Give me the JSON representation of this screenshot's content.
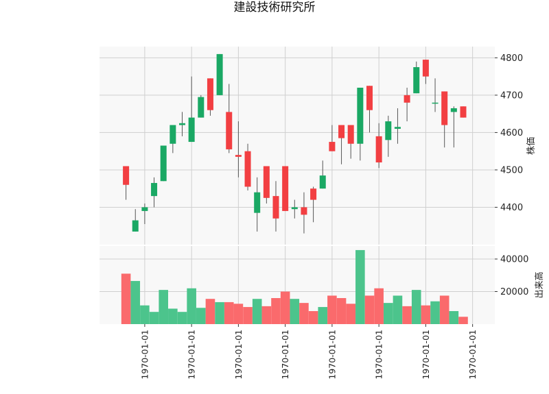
{
  "chart_data": {
    "type": "candlestick",
    "title": "建設技術研究所",
    "price_axis": {
      "label": "株価",
      "ylim": [
        4300,
        4830
      ],
      "ticks": [
        4400,
        4500,
        4600,
        4700,
        4800
      ]
    },
    "volume_axis": {
      "label": "出来高",
      "ylim": [
        0,
        48000
      ],
      "ticks": [
        20000,
        40000
      ]
    },
    "x_tick_labels": [
      "1970-01-01",
      "1970-01-01",
      "1970-01-01",
      "1970-01-01",
      "1970-01-01",
      "1970-01-01",
      "1970-01-01",
      "1970-01-01"
    ],
    "x_tick_positions": [
      2,
      7,
      12,
      17,
      22,
      27,
      32,
      37
    ],
    "colors": {
      "up": "#1aa864",
      "down": "#f23f42",
      "up_volume": "#4cc48c",
      "down_volume": "#fa6a6c",
      "wick": "#555555",
      "panel_bg": "#f8f8f8",
      "grid": "#cfcfcf"
    },
    "candles": [
      {
        "open": 4510,
        "high": 4510,
        "low": 4420,
        "close": 4460,
        "volume": 31000
      },
      {
        "open": 4335,
        "high": 4395,
        "low": 4335,
        "close": 4365,
        "volume": 26500
      },
      {
        "open": 4390,
        "high": 4410,
        "low": 4355,
        "close": 4400,
        "volume": 11500
      },
      {
        "open": 4430,
        "high": 4480,
        "low": 4400,
        "close": 4465,
        "volume": 7500
      },
      {
        "open": 4470,
        "high": 4565,
        "low": 4470,
        "close": 4565,
        "volume": 21000
      },
      {
        "open": 4570,
        "high": 4620,
        "low": 4545,
        "close": 4620,
        "volume": 9500
      },
      {
        "open": 4620,
        "high": 4655,
        "low": 4590,
        "close": 4625,
        "volume": 7500
      },
      {
        "open": 4575,
        "high": 4750,
        "low": 4575,
        "close": 4640,
        "volume": 22000
      },
      {
        "open": 4640,
        "high": 4700,
        "low": 4640,
        "close": 4695,
        "volume": 10000
      },
      {
        "open": 4745,
        "high": 4745,
        "low": 4645,
        "close": 4660,
        "volume": 15500
      },
      {
        "open": 4700,
        "high": 4810,
        "low": 4700,
        "close": 4810,
        "volume": 13500
      },
      {
        "open": 4655,
        "high": 4730,
        "low": 4545,
        "close": 4555,
        "volume": 13500
      },
      {
        "open": 4540,
        "high": 4630,
        "low": 4480,
        "close": 4535,
        "volume": 12500
      },
      {
        "open": 4550,
        "high": 4570,
        "low": 4445,
        "close": 4455,
        "volume": 10500
      },
      {
        "open": 4385,
        "high": 4480,
        "low": 4335,
        "close": 4440,
        "volume": 15500
      },
      {
        "open": 4510,
        "high": 4510,
        "low": 4410,
        "close": 4425,
        "volume": 11000
      },
      {
        "open": 4430,
        "high": 4470,
        "low": 4335,
        "close": 4370,
        "volume": 16000
      },
      {
        "open": 4510,
        "high": 4510,
        "low": 4390,
        "close": 4390,
        "volume": 20000
      },
      {
        "open": 4395,
        "high": 4420,
        "low": 4370,
        "close": 4400,
        "volume": 15500
      },
      {
        "open": 4400,
        "high": 4440,
        "low": 4330,
        "close": 4380,
        "volume": 13000
      },
      {
        "open": 4450,
        "high": 4455,
        "low": 4360,
        "close": 4420,
        "volume": 8000
      },
      {
        "open": 4450,
        "high": 4525,
        "low": 4450,
        "close": 4485,
        "volume": 10500
      },
      {
        "open": 4575,
        "high": 4620,
        "low": 4550,
        "close": 4550,
        "volume": 17500
      },
      {
        "open": 4620,
        "high": 4620,
        "low": 4515,
        "close": 4585,
        "volume": 16000
      },
      {
        "open": 4620,
        "high": 4620,
        "low": 4530,
        "close": 4570,
        "volume": 12500
      },
      {
        "open": 4570,
        "high": 4720,
        "low": 4525,
        "close": 4720,
        "volume": 45500
      },
      {
        "open": 4725,
        "high": 4725,
        "low": 4600,
        "close": 4660,
        "volume": 17500
      },
      {
        "open": 4590,
        "high": 4625,
        "low": 4505,
        "close": 4520,
        "volume": 22000
      },
      {
        "open": 4580,
        "high": 4645,
        "low": 4535,
        "close": 4630,
        "volume": 13000
      },
      {
        "open": 4610,
        "high": 4665,
        "low": 4570,
        "close": 4615,
        "volume": 17500
      },
      {
        "open": 4700,
        "high": 4720,
        "low": 4630,
        "close": 4680,
        "volume": 11000
      },
      {
        "open": 4705,
        "high": 4790,
        "low": 4705,
        "close": 4775,
        "volume": 21000
      },
      {
        "open": 4795,
        "high": 4795,
        "low": 4730,
        "close": 4750,
        "volume": 11500
      },
      {
        "open": 4680,
        "high": 4745,
        "low": 4655,
        "close": 4680,
        "volume": 14000
      },
      {
        "open": 4710,
        "high": 4710,
        "low": 4560,
        "close": 4620,
        "volume": 17500
      },
      {
        "open": 4655,
        "high": 4670,
        "low": 4560,
        "close": 4665,
        "volume": 8000
      },
      {
        "open": 4670,
        "high": 4670,
        "low": 4640,
        "close": 4640,
        "volume": 4500
      }
    ]
  }
}
